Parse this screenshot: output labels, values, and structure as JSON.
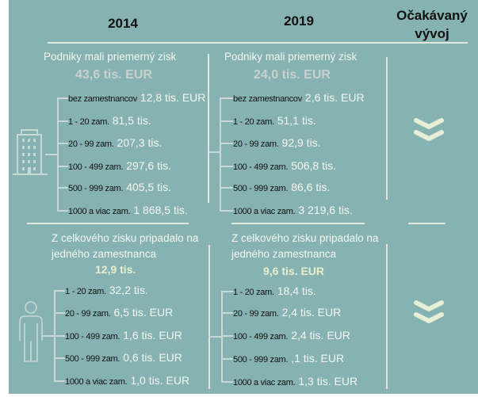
{
  "headers": {
    "y2014": "2014",
    "y2019": "2019",
    "outlook_line1": "Očakávaný",
    "outlook_line2": "vývoj"
  },
  "profit": {
    "title": "Podniky mali priemerný zisk",
    "y2014": {
      "total": "43,6 tis. EUR",
      "rows": [
        {
          "label": "bez zamestnancov",
          "value": "12,8 tis. EUR"
        },
        {
          "label": "1 - 20 zam.",
          "value": "81,5 tis."
        },
        {
          "label": "20 - 99 zam.",
          "value": "207,3  tis."
        },
        {
          "label": "100 - 499 zam.",
          "value": "297,6  tis."
        },
        {
          "label": "500 - 999 zam.",
          "value": "405,5  tis."
        },
        {
          "label": "1000 a viac zam.",
          "value": "1 868,5 tis."
        }
      ]
    },
    "y2019": {
      "total": "24,0 tis. EUR",
      "rows": [
        {
          "label": "bez zamestnancov",
          "value": "2,6 tis. EUR"
        },
        {
          "label": "1 - 20 zam.",
          "value": "51,1 tis."
        },
        {
          "label": "20 - 99 zam.",
          "value": "92,9 tis."
        },
        {
          "label": "100 - 499 zam.",
          "value": "506,8  tis."
        },
        {
          "label": "500 - 999 zam.",
          "value": "86,6 tis."
        },
        {
          "label": "1000 a viac zam.",
          "value": "3 219,6 tis."
        }
      ]
    },
    "trend_icon": "double-chevron-down"
  },
  "per_employee": {
    "title_line1": "Z celkového zisku pripadalo na",
    "title_line2": "jedného zamestnanca",
    "y2014": {
      "total": "12,9 tis.",
      "rows": [
        {
          "label": "1 - 20 zam.",
          "value": "32,2 tis."
        },
        {
          "label": "20 - 99 zam.",
          "value": "6,5 tis. EUR"
        },
        {
          "label": "100 - 499 zam.",
          "value": "1,6 tis. EUR"
        },
        {
          "label": "500 - 999 zam.",
          "value": "0,6 tis. EUR"
        },
        {
          "label": "1000 a viac zam.",
          "value": "1,0 tis. EUR"
        }
      ]
    },
    "y2019": {
      "total": "9,6 tis. EUR",
      "rows": [
        {
          "label": "1 - 20 zam.",
          "value": "18,4 tis."
        },
        {
          "label": "20 - 99 zam.",
          "value": "2,4 tis. EUR"
        },
        {
          "label": "100 - 499 zam.",
          "value": "2,4 tis. EUR"
        },
        {
          "label": "500 - 999 zam.",
          "value": ",1 tis. EUR"
        },
        {
          "label": "1000 a viac zam.",
          "value": "1,3 tis. EUR"
        }
      ]
    },
    "trend_icon": "double-chevron-down"
  },
  "colors": {
    "background": "#86b3b1",
    "profit_total": "#c9d1cf",
    "per_employee_total": "#e8efcf",
    "chevron": "#e8efd8"
  }
}
